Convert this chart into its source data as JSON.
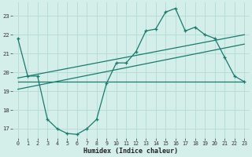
{
  "xlabel": "Humidex (Indice chaleur)",
  "bg_color": "#d4eeea",
  "grid_color": "#b8ddd8",
  "line_color": "#1a7a6e",
  "xlim": [
    -0.5,
    23.5
  ],
  "ylim": [
    16.5,
    23.7
  ],
  "yticks": [
    17,
    18,
    19,
    20,
    21,
    22,
    23
  ],
  "xticks": [
    0,
    1,
    2,
    3,
    4,
    5,
    6,
    7,
    8,
    9,
    10,
    11,
    12,
    13,
    14,
    15,
    16,
    17,
    18,
    19,
    20,
    21,
    22,
    23
  ],
  "series_main": {
    "x": [
      0,
      1,
      2,
      3,
      4,
      5,
      6,
      7,
      8,
      9,
      10,
      11,
      12,
      13,
      14,
      15,
      16,
      17,
      18,
      19,
      20,
      21,
      22,
      23
    ],
    "y": [
      21.8,
      19.8,
      19.8,
      17.5,
      17.0,
      16.75,
      16.7,
      17.0,
      17.5,
      19.4,
      20.5,
      20.5,
      21.1,
      22.2,
      22.3,
      23.2,
      23.4,
      22.2,
      22.4,
      22.0,
      21.8,
      20.8,
      19.8,
      19.5
    ]
  },
  "series_lines": [
    {
      "x": [
        0,
        23
      ],
      "y": [
        19.5,
        19.5
      ]
    },
    {
      "x": [
        0,
        23
      ],
      "y": [
        19.1,
        21.5
      ]
    },
    {
      "x": [
        0,
        23
      ],
      "y": [
        19.7,
        22.0
      ]
    }
  ]
}
